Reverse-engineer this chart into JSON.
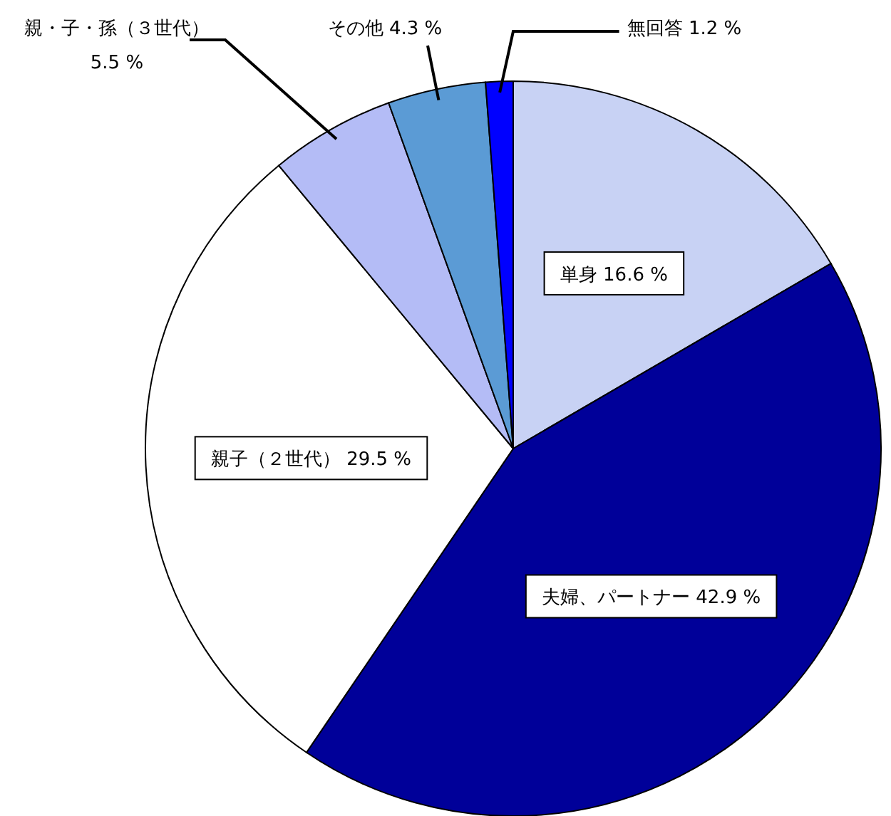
{
  "chart_data": {
    "type": "pie",
    "categories": [
      "単身",
      "夫婦、パートナー",
      "親子（２世代）",
      "親・子・孫（３世代）",
      "その他",
      "無回答"
    ],
    "values": [
      16.6,
      42.9,
      29.5,
      5.5,
      4.3,
      1.2
    ],
    "colors": [
      "#c8d2f4",
      "#000099",
      "#ffffff",
      "#b4bcf6",
      "#5b9bd5",
      "#0000ff"
    ],
    "value_labels": [
      "16.6 %",
      "42.9 %",
      "29.5 %",
      "5.5 %",
      "4.3 %",
      "1.2 %"
    ],
    "legend": false
  }
}
